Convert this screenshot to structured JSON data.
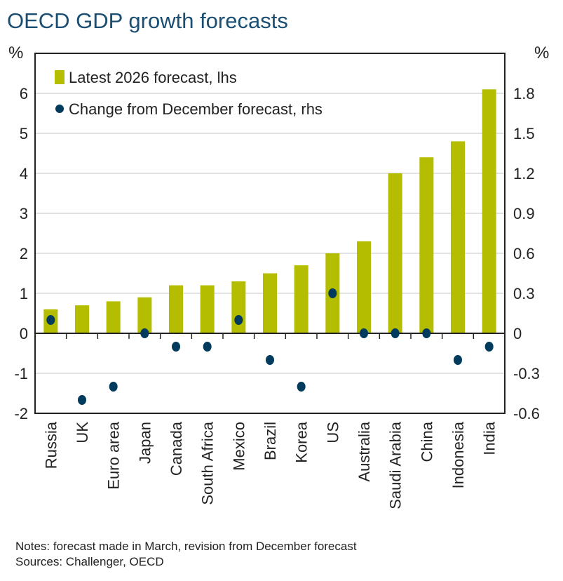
{
  "title": "OECD GDP growth forecasts",
  "notes": [
    "Notes: forecast made in March, revision from December forecast",
    "Sources: Challenger, OECD"
  ],
  "colors": {
    "bar": "#b5bd00",
    "dot": "#003a5d"
  },
  "chart_data": {
    "type": "bar",
    "title": "OECD GDP growth forecasts",
    "categories": [
      "Russia",
      "UK",
      "Euro area",
      "Japan",
      "Canada",
      "South Africa",
      "Mexico",
      "Brazil",
      "Korea",
      "US",
      "Australia",
      "Saudi Arabia",
      "China",
      "Indonesia",
      "India"
    ],
    "series": [
      {
        "name": "Latest 2026 forecast, lhs",
        "type": "bar",
        "axis": "left",
        "values": [
          0.6,
          0.7,
          0.8,
          0.9,
          1.2,
          1.2,
          1.3,
          1.5,
          1.7,
          2.0,
          2.3,
          4.0,
          4.4,
          4.8,
          6.1
        ]
      },
      {
        "name": "Change from December forecast, rhs",
        "type": "scatter",
        "axis": "right",
        "values": [
          0.1,
          -0.5,
          -0.4,
          0,
          -0.1,
          -0.1,
          0.1,
          -0.2,
          -0.4,
          0.3,
          0,
          0,
          0,
          -0.2,
          -0.1
        ]
      }
    ],
    "ylabel_left": "%",
    "ylabel_right": "%",
    "ylim_left": [
      -2,
      7
    ],
    "ylim_right": [
      -0.6,
      2.1
    ],
    "yticks_left": [
      "-2",
      "-1",
      "0",
      "1",
      "2",
      "3",
      "4",
      "5",
      "6"
    ],
    "yticks_right": [
      "-0.6",
      "-0.3",
      "0",
      "0.3",
      "0.6",
      "0.9",
      "1.2",
      "1.5",
      "1.8"
    ],
    "grid": true,
    "legend": "top-left"
  }
}
